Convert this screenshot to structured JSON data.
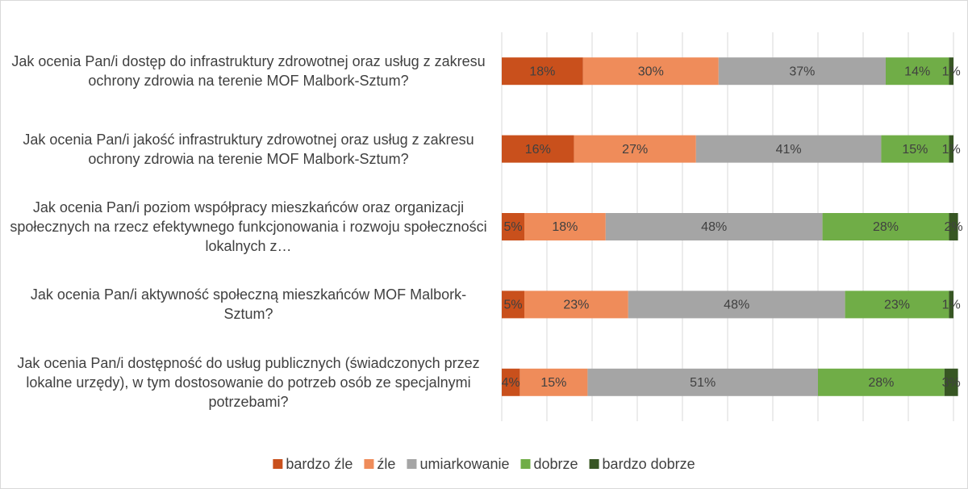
{
  "chart_data": {
    "type": "stacked-bar-horizontal",
    "categories": [
      "Jak ocenia Pan/i dostęp do infrastruktury zdrowotnej oraz usług z zakresu ochrony zdrowia na terenie MOF Malbork-Sztum?",
      "Jak ocenia Pan/i jakość infrastruktury zdrowotnej oraz usług z zakresu ochrony zdrowia na terenie MOF Malbork-Sztum?",
      "Jak ocenia Pan/i poziom współpracy mieszkańców oraz organizacji społecznych na rzecz efektywnego funkcjonowania i rozwoju społeczności lokalnych z…",
      "Jak ocenia Pan/i aktywność społeczną mieszkańców MOF Malbork-Sztum?",
      "Jak ocenia Pan/i dostępność do usług publicznych (świadczonych przez lokalne urzędy), w tym dostosowanie do potrzeb osób ze specjalnymi potrzebami?"
    ],
    "series": [
      {
        "name": "bardzo  źle",
        "color": "#c9501c",
        "values": [
          18,
          16,
          5,
          5,
          4
        ],
        "value_labels": [
          "18%",
          "16%",
          "5%",
          "5%",
          "4%"
        ]
      },
      {
        "name": "źle",
        "color": "#ef8c5a",
        "values": [
          30,
          27,
          18,
          23,
          15
        ],
        "value_labels": [
          "30%",
          "27%",
          "18%",
          "23%",
          "15%"
        ]
      },
      {
        "name": "umiarkowanie",
        "color": "#a5a5a5",
        "values": [
          37,
          41,
          48,
          48,
          51
        ],
        "value_labels": [
          "37%",
          "41%",
          "48%",
          "48%",
          "51%"
        ]
      },
      {
        "name": "dobrze",
        "color": "#70ad47",
        "values": [
          14,
          15,
          28,
          23,
          28
        ],
        "value_labels": [
          "14%",
          "15%",
          "28%",
          "23%",
          "28%"
        ]
      },
      {
        "name": "bardzo dobrze",
        "color": "#375623",
        "values": [
          1,
          1,
          2,
          1,
          3
        ],
        "value_labels": [
          "1%",
          "1%",
          "2%",
          "1%",
          "3%"
        ]
      }
    ],
    "xlim": [
      0,
      100
    ],
    "xticks": [
      0,
      10,
      20,
      30,
      40,
      50,
      60,
      70,
      80,
      90,
      100
    ],
    "grid": true,
    "legend": "bottom"
  }
}
